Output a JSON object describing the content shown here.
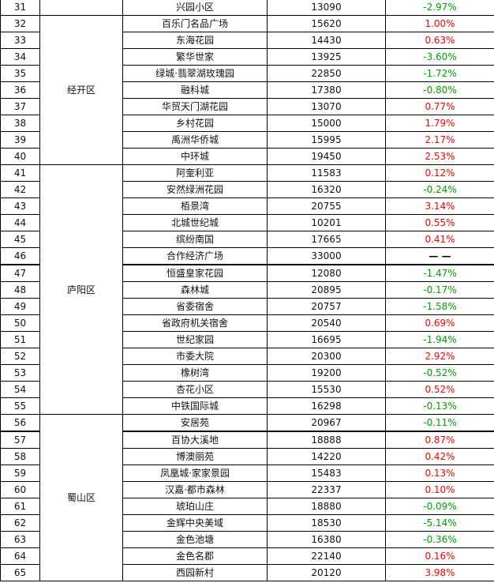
{
  "rows": [
    {
      "no": "31",
      "name": "兴园小区",
      "price": "13090",
      "change": "-2.97%",
      "dir": "down"
    },
    {
      "no": "32",
      "name": "百乐门名品广场",
      "price": "15620",
      "change": "1.00%",
      "dir": "up"
    },
    {
      "no": "33",
      "name": "东海花园",
      "price": "14430",
      "change": "0.63%",
      "dir": "up"
    },
    {
      "no": "34",
      "name": "繁华世家",
      "price": "13925",
      "change": "-3.60%",
      "dir": "down"
    },
    {
      "no": "35",
      "name": "绿城·翡翠湖玫瑰园",
      "price": "22850",
      "change": "-1.72%",
      "dir": "down"
    },
    {
      "no": "36",
      "name": "融科城",
      "price": "17380",
      "change": "-0.80%",
      "dir": "down"
    },
    {
      "no": "37",
      "name": "华贸天门湖花园",
      "price": "13070",
      "change": "0.77%",
      "dir": "up"
    },
    {
      "no": "38",
      "name": "乡村花园",
      "price": "15000",
      "change": "1.79%",
      "dir": "up"
    },
    {
      "no": "39",
      "name": "禹洲华侨城",
      "price": "15995",
      "change": "2.17%",
      "dir": "up"
    },
    {
      "no": "40",
      "name": "中环城",
      "price": "19450",
      "change": "2.53%",
      "dir": "up"
    },
    {
      "no": "41",
      "name": "阿奎利亚",
      "price": "11583",
      "change": "0.12%",
      "dir": "up"
    },
    {
      "no": "42",
      "name": "安然绿洲花园",
      "price": "16320",
      "change": "-0.24%",
      "dir": "down"
    },
    {
      "no": "43",
      "name": "栢景湾",
      "price": "20755",
      "change": "3.14%",
      "dir": "up"
    },
    {
      "no": "44",
      "name": "北城世纪城",
      "price": "10201",
      "change": "0.55%",
      "dir": "up"
    },
    {
      "no": "45",
      "name": "缤纷南国",
      "price": "17665",
      "change": "0.41%",
      "dir": "up"
    },
    {
      "no": "46",
      "name": "合作经济广场",
      "price": "33000",
      "change": "— —",
      "dir": "flat"
    },
    {
      "no": "47",
      "name": "恒盛皇家花园",
      "price": "12080",
      "change": "-1.47%",
      "dir": "down"
    },
    {
      "no": "48",
      "name": "森林城",
      "price": "20895",
      "change": "-0.17%",
      "dir": "down"
    },
    {
      "no": "49",
      "name": "省委宿舍",
      "price": "20757",
      "change": "-1.58%",
      "dir": "down"
    },
    {
      "no": "50",
      "name": "省政府机关宿舍",
      "price": "20540",
      "change": "0.69%",
      "dir": "up"
    },
    {
      "no": "51",
      "name": "世纪家园",
      "price": "16695",
      "change": "-1.94%",
      "dir": "down"
    },
    {
      "no": "52",
      "name": "市委大院",
      "price": "20300",
      "change": "2.92%",
      "dir": "up"
    },
    {
      "no": "53",
      "name": "橡树湾",
      "price": "19200",
      "change": "-0.52%",
      "dir": "down"
    },
    {
      "no": "54",
      "name": "杏花小区",
      "price": "15530",
      "change": "0.52%",
      "dir": "up"
    },
    {
      "no": "55",
      "name": "中铁国际城",
      "price": "16298",
      "change": "-0.13%",
      "dir": "down"
    },
    {
      "no": "56",
      "name": "安居苑",
      "price": "20967",
      "change": "-0.11%",
      "dir": "down"
    },
    {
      "no": "57",
      "name": "百协大溪地",
      "price": "18888",
      "change": "0.87%",
      "dir": "up"
    },
    {
      "no": "58",
      "name": "博澳丽苑",
      "price": "14220",
      "change": "0.42%",
      "dir": "up"
    },
    {
      "no": "59",
      "name": "凤凰城·家家景园",
      "price": "15483",
      "change": "0.13%",
      "dir": "up"
    },
    {
      "no": "60",
      "name": "汉嘉·都市森林",
      "price": "22337",
      "change": "0.10%",
      "dir": "up"
    },
    {
      "no": "61",
      "name": "琥珀山庄",
      "price": "18880",
      "change": "-0.09%",
      "dir": "down"
    },
    {
      "no": "62",
      "name": "金辉中央美域",
      "price": "18530",
      "change": "-5.14%",
      "dir": "down"
    },
    {
      "no": "63",
      "name": "金色池塘",
      "price": "16380",
      "change": "-0.36%",
      "dir": "down"
    },
    {
      "no": "64",
      "name": "金色名郡",
      "price": "22140",
      "change": "0.16%",
      "dir": "up"
    },
    {
      "no": "65",
      "name": "西园新村",
      "price": "20120",
      "change": "3.98%",
      "dir": "up"
    }
  ],
  "districts": [
    {
      "name": "",
      "start": 0,
      "span": 1
    },
    {
      "name": "经开区",
      "start": 1,
      "span": 9
    },
    {
      "name": "庐阳区",
      "start": 10,
      "span": 15
    },
    {
      "name": "蜀山区",
      "start": 25,
      "span": 10
    }
  ],
  "group_rule_rows": [
    16,
    26
  ],
  "colors": {
    "up": "#ff0000",
    "down": "#00a000",
    "flat": "#000000",
    "border": "#000000"
  }
}
